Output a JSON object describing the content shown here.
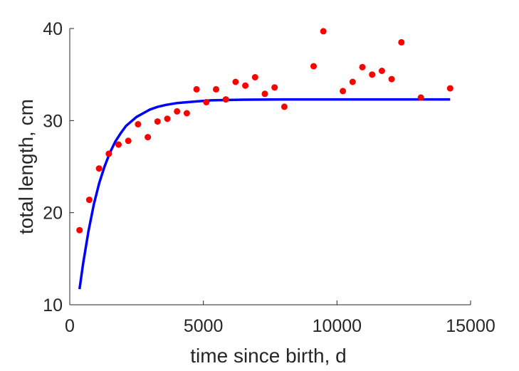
{
  "chart_data": {
    "type": "scatter",
    "xlabel": "time since birth, d",
    "ylabel": "total length, cm",
    "xlim": [
      0,
      15000
    ],
    "ylim": [
      10,
      40
    ],
    "xticks": [
      0,
      5000,
      10000,
      15000
    ],
    "yticks": [
      10,
      20,
      30,
      40
    ],
    "xtick_labels": [
      "0",
      "5000",
      "10000",
      "15000"
    ],
    "ytick_labels": [
      "10",
      "20",
      "30",
      "40"
    ],
    "grid": false,
    "legend": "none",
    "colors": {
      "points": "#ff0000",
      "fit": "#0000ff",
      "axis": "#262626"
    },
    "series": [
      {
        "kind": "scatter",
        "x": [
          365,
          730,
          1095,
          1460,
          1825,
          2190,
          2555,
          2920,
          3285,
          3650,
          4015,
          4380,
          4745,
          5110,
          5475,
          5840,
          6205,
          6570,
          6935,
          7300,
          7665,
          8030,
          9125,
          9490,
          10220,
          10585,
          10950,
          11315,
          11680,
          12045,
          12410,
          13140,
          14235
        ],
        "y": [
          18.1,
          21.4,
          24.8,
          26.4,
          27.4,
          27.8,
          29.6,
          28.2,
          29.9,
          30.2,
          31.0,
          30.8,
          33.4,
          32.0,
          33.4,
          32.3,
          34.2,
          33.8,
          34.7,
          32.9,
          33.6,
          31.5,
          35.9,
          39.7,
          33.2,
          34.2,
          35.8,
          35.0,
          35.4,
          34.5,
          38.5,
          32.5,
          33.5
        ]
      },
      {
        "kind": "line",
        "x": [
          365,
          500,
          700,
          900,
          1100,
          1300,
          1500,
          1700,
          1900,
          2100,
          2300,
          2500,
          2750,
          3000,
          3300,
          3600,
          4000,
          4400,
          4800,
          5300,
          5800,
          6500,
          8000,
          10000,
          12000,
          14235
        ],
        "y": [
          11.7,
          14.5,
          18.0,
          20.9,
          23.2,
          25.0,
          26.5,
          27.7,
          28.6,
          29.4,
          29.9,
          30.4,
          30.8,
          31.2,
          31.5,
          31.7,
          31.9,
          32.0,
          32.1,
          32.2,
          32.23,
          32.27,
          32.3,
          32.3,
          32.3,
          32.3
        ]
      }
    ]
  }
}
